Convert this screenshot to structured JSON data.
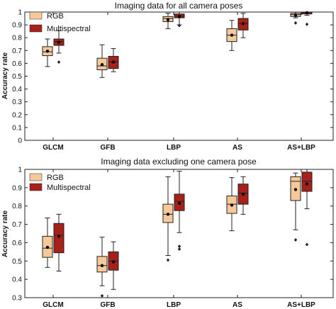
{
  "chart_data": [
    {
      "type": "box",
      "title": "Imaging data for all camera poses",
      "ylabel": "Accuracy rate",
      "ylim": [
        0.0,
        1.0
      ],
      "yticks": [
        "0",
        "0.1",
        "0.2",
        "0.3",
        "0.4",
        "0.5",
        "0.6",
        "0.7",
        "0.8",
        "0.9",
        "1"
      ],
      "categories": [
        "GLCM",
        "GFB",
        "LBP",
        "AS",
        "AS+LBP"
      ],
      "legend_position": "top-left",
      "series": [
        {
          "name": "RGB",
          "color": "#F6C99A",
          "boxes": [
            {
              "whisker_low": 0.575,
              "q1": 0.66,
              "median": 0.69,
              "mean": 0.695,
              "q3": 0.73,
              "whisker_high": 0.79,
              "outliers": []
            },
            {
              "whisker_low": 0.49,
              "q1": 0.55,
              "median": 0.58,
              "mean": 0.59,
              "q3": 0.64,
              "whisker_high": 0.745,
              "outliers": []
            },
            {
              "whisker_low": 0.87,
              "q1": 0.925,
              "median": 0.95,
              "mean": 0.94,
              "q3": 0.965,
              "whisker_high": 0.99,
              "outliers": []
            },
            {
              "whisker_low": 0.7,
              "q1": 0.77,
              "median": 0.82,
              "mean": 0.82,
              "q3": 0.87,
              "whisker_high": 0.935,
              "outliers": []
            },
            {
              "whisker_low": 0.955,
              "q1": 0.965,
              "median": 0.98,
              "mean": 0.975,
              "q3": 0.99,
              "whisker_high": 1.0,
              "outliers": [
                0.915
              ]
            }
          ]
        },
        {
          "name": "Multispectral",
          "color": "#A8201A",
          "boxes": [
            {
              "whisker_low": 0.68,
              "q1": 0.74,
              "median": 0.77,
              "mean": 0.765,
              "q3": 0.79,
              "whisker_high": 0.855,
              "outliers": [
                0.61
              ]
            },
            {
              "whisker_low": 0.535,
              "q1": 0.56,
              "median": 0.61,
              "mean": 0.61,
              "q3": 0.655,
              "whisker_high": 0.715,
              "outliers": []
            },
            {
              "whisker_low": 0.9,
              "q1": 0.955,
              "median": 0.97,
              "mean": 0.965,
              "q3": 0.985,
              "whisker_high": 1.0,
              "outliers": [
                0.895
              ]
            },
            {
              "whisker_low": 0.8,
              "q1": 0.86,
              "median": 0.91,
              "mean": 0.91,
              "q3": 0.95,
              "whisker_high": 0.99,
              "outliers": []
            },
            {
              "whisker_low": 0.975,
              "q1": 0.985,
              "median": 0.995,
              "mean": 0.995,
              "q3": 1.0,
              "whisker_high": 1.0,
              "outliers": [
                0.905
              ]
            }
          ]
        }
      ]
    },
    {
      "type": "box",
      "title": "Imaging data excluding one camera pose",
      "ylabel": "Accuracy rate",
      "ylim": [
        0.3,
        1.0
      ],
      "yticks": [
        "0.3",
        "0.4",
        "0.5",
        "0.6",
        "0.7",
        "0.8",
        "0.9",
        "1"
      ],
      "categories": [
        "GLCM",
        "GFB",
        "LBP",
        "AS",
        "AS+LBP"
      ],
      "legend_position": "top-left",
      "series": [
        {
          "name": "RGB",
          "color": "#F6C99A",
          "boxes": [
            {
              "whisker_low": 0.465,
              "q1": 0.52,
              "median": 0.57,
              "mean": 0.575,
              "q3": 0.635,
              "whisker_high": 0.735,
              "outliers": []
            },
            {
              "whisker_low": 0.365,
              "q1": 0.44,
              "median": 0.475,
              "mean": 0.475,
              "q3": 0.525,
              "whisker_high": 0.63,
              "outliers": [
                0.31
              ]
            },
            {
              "whisker_low": 0.53,
              "q1": 0.71,
              "median": 0.755,
              "mean": 0.755,
              "q3": 0.81,
              "whisker_high": 0.96,
              "outliers": [
                0.505
              ]
            },
            {
              "whisker_low": 0.665,
              "q1": 0.76,
              "median": 0.81,
              "mean": 0.805,
              "q3": 0.855,
              "whisker_high": 0.955,
              "outliers": []
            },
            {
              "whisker_low": 0.67,
              "q1": 0.83,
              "median": 0.935,
              "mean": 0.89,
              "q3": 0.96,
              "whisker_high": 0.98,
              "outliers": [
                0.615
              ]
            }
          ]
        },
        {
          "name": "Multispectral",
          "color": "#A8201A",
          "boxes": [
            {
              "whisker_low": 0.445,
              "q1": 0.545,
              "median": 0.64,
              "mean": 0.635,
              "q3": 0.705,
              "whisker_high": 0.755,
              "outliers": []
            },
            {
              "whisker_low": 0.345,
              "q1": 0.45,
              "median": 0.5,
              "mean": 0.495,
              "q3": 0.55,
              "whisker_high": 0.605,
              "outliers": []
            },
            {
              "whisker_low": 0.655,
              "q1": 0.775,
              "median": 0.825,
              "mean": 0.815,
              "q3": 0.865,
              "whisker_high": 0.99,
              "outliers": [
                0.565,
                0.58
              ]
            },
            {
              "whisker_low": 0.755,
              "q1": 0.81,
              "median": 0.87,
              "mean": 0.865,
              "q3": 0.92,
              "whisker_high": 0.96,
              "outliers": []
            },
            {
              "whisker_low": 0.785,
              "q1": 0.88,
              "median": 0.935,
              "mean": 0.92,
              "q3": 0.985,
              "whisker_high": 1.0,
              "outliers": [
                0.59
              ]
            }
          ]
        }
      ]
    }
  ]
}
